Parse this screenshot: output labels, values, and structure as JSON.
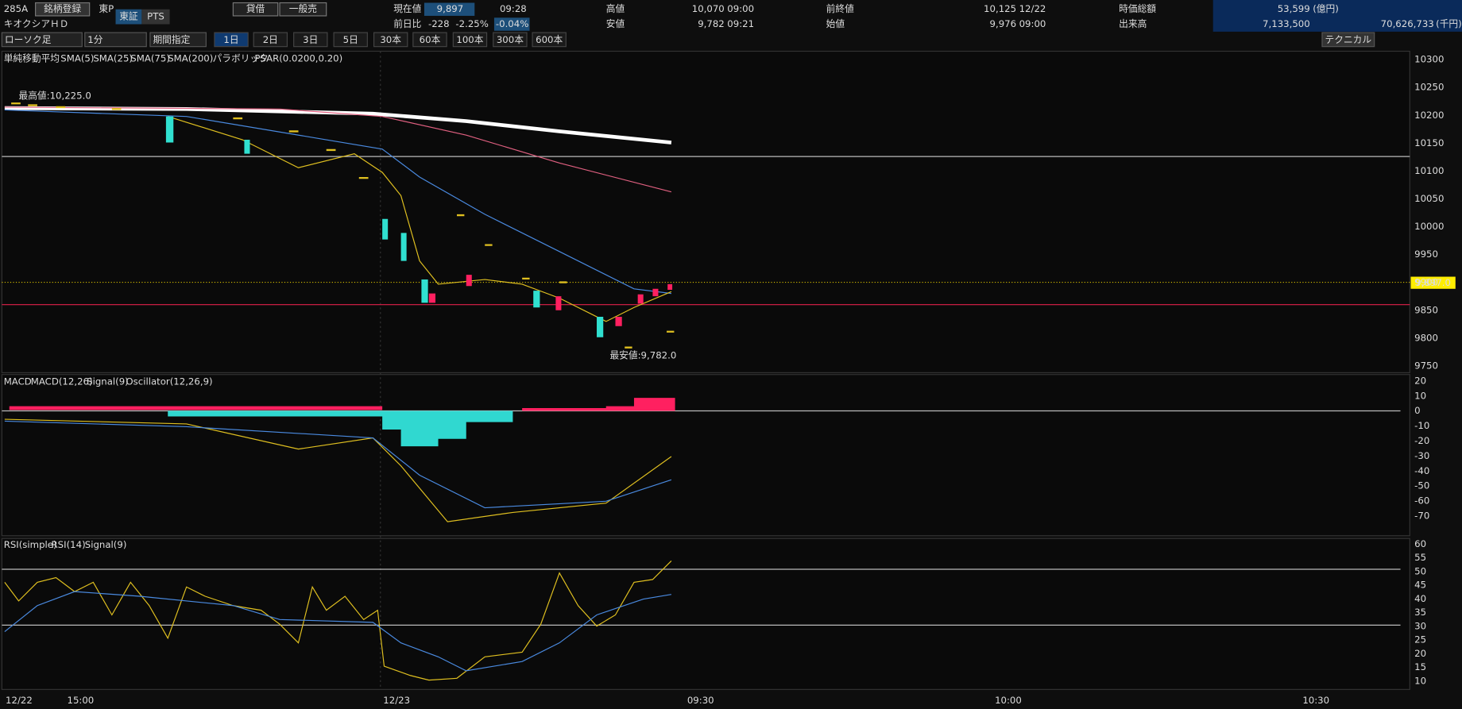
{
  "header": {
    "code": "285A",
    "register": "銘柄登録",
    "market": "東P",
    "market_tabs": [
      "東証",
      "PTS"
    ],
    "lending": [
      "貸借",
      "一般売"
    ],
    "name": "キオクシアＨＤ",
    "quote": {
      "current_label": "現在値",
      "current": "9,897",
      "current_time": "09:28",
      "change_label": "前日比",
      "change": "-228",
      "change_pct": "-2.25%",
      "change_extra": "-0.04%",
      "high_label": "高値",
      "high": "10,070",
      "high_time": "09:00",
      "low_label": "安値",
      "low": "9,782",
      "low_time": "09:21",
      "prev_label": "前終値",
      "prev": "10,125",
      "prev_date": "12/22",
      "open_label": "始値",
      "open": "9,976",
      "open_time": "09:00",
      "cap_label": "時価総額",
      "cap": "53,599",
      "cap_unit": "(億円)",
      "volume_label": "出来高",
      "volume": "7,133,500",
      "turnover": "70,626,733",
      "turnover_unit": "(千円)"
    }
  },
  "toolbar": {
    "chart_type": "ローソク足",
    "interval": "1分",
    "period": "期間指定",
    "ranges": [
      "1日",
      "2日",
      "3日",
      "5日",
      "30本",
      "60本",
      "100本",
      "300本",
      "600本"
    ],
    "technical": "テクニカル"
  },
  "price_panel": {
    "legend": [
      "単純移動平均",
      "SMA(5)",
      "SMA(25)",
      "SMA(75)",
      "SMA(200)",
      "パラボリック",
      "PSAR(0.0200,0.20)"
    ],
    "high_note": "最高値:10,225.0",
    "low_note": "最安値:9,782.0",
    "current_tag": "9,897.0",
    "axis": [
      10300,
      10250,
      10200,
      10150,
      10100,
      10050,
      10000,
      9950,
      9900,
      9850,
      9800,
      9750
    ]
  },
  "macd_panel": {
    "legend": [
      "MACD",
      "MACD(12,26)",
      "Signal(9)",
      "Oscillator(12,26,9)"
    ],
    "axis": [
      20,
      10,
      0,
      -10,
      -20,
      -30,
      -40,
      -50,
      -60,
      -70
    ]
  },
  "rsi_panel": {
    "legend": [
      "RSI(simple)",
      "RSI(14)",
      "Signal(9)"
    ],
    "axis": [
      60,
      55,
      50,
      45,
      40,
      35,
      30,
      25,
      20,
      15,
      10
    ]
  },
  "time_axis": [
    "12/22",
    "15:00",
    "12/23",
    "09:30",
    "10:00",
    "10:30"
  ]
}
